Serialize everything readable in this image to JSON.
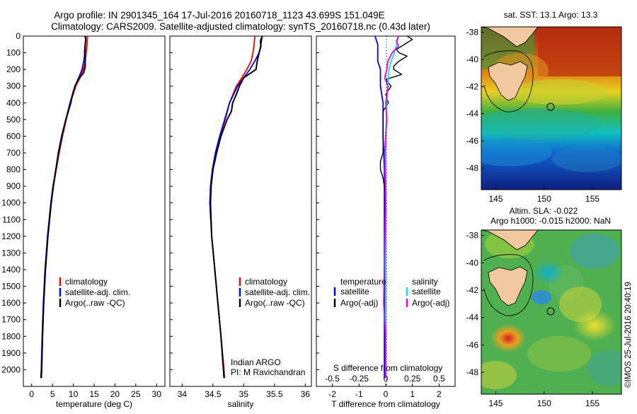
{
  "header": {
    "line1": "Argo profile: IN 2901345_164 17-Jul-2016 20160718_1123 43.699S 151.049E",
    "line2": "Climatology: CARS2009. Satellite-adjusted climatology: synTS_20160718.nc (0.43d later)"
  },
  "colors": {
    "climatology": "#ff0000",
    "satellite": "#0000ff",
    "argo": "#000000",
    "sal_satellite": "#00e5ee",
    "sal_argo": "#ee00ee"
  },
  "chart_data": [
    {
      "id": "temperature",
      "type": "line",
      "xlabel": "temperature (deg C)",
      "xlim": [
        -2,
        32
      ],
      "xticks": [
        0,
        5,
        10,
        15,
        20,
        25,
        30
      ],
      "ylim": [
        0,
        2100
      ],
      "yticks": [
        0,
        100,
        200,
        300,
        400,
        500,
        600,
        700,
        800,
        900,
        1000,
        1100,
        1200,
        1300,
        1400,
        1500,
        1600,
        1700,
        1800,
        1900,
        2000
      ],
      "legend": [
        "climatology",
        "satellite-adj. clim.",
        "Argo(..raw -QC)"
      ],
      "series": [
        {
          "name": "climatology",
          "depth": [
            0,
            50,
            100,
            150,
            200,
            250,
            300,
            400,
            500,
            600,
            700,
            800,
            900,
            1000,
            1200,
            1400,
            1600,
            1800,
            2000,
            2050
          ],
          "values": [
            13.4,
            13.3,
            13.1,
            12.9,
            12.4,
            11.6,
            10.6,
            9.3,
            8.3,
            7.4,
            6.6,
            5.9,
            5.2,
            4.7,
            3.9,
            3.3,
            2.9,
            2.6,
            2.4,
            2.3
          ]
        },
        {
          "name": "satellite",
          "depth": [
            0,
            50,
            100,
            150,
            200,
            250,
            300,
            400,
            500,
            600,
            700,
            800,
            900,
            1000,
            1200,
            1400,
            1600,
            1800,
            2000,
            2050
          ],
          "values": [
            13.0,
            12.9,
            12.8,
            12.5,
            12.1,
            11.3,
            10.4,
            9.2,
            8.2,
            7.3,
            6.5,
            5.8,
            5.1,
            4.6,
            3.8,
            3.2,
            2.8,
            2.5,
            2.3,
            2.2
          ]
        },
        {
          "name": "argo",
          "depth": [
            0,
            20,
            60,
            100,
            140,
            180,
            220,
            260,
            300,
            350,
            400,
            500,
            600,
            700,
            800,
            900,
            1000,
            1200,
            1400,
            1600,
            1800,
            2000,
            2050
          ],
          "values": [
            12.8,
            13.0,
            12.8,
            12.7,
            12.8,
            12.9,
            12.5,
            11.2,
            10.4,
            9.8,
            9.4,
            8.2,
            7.2,
            6.4,
            5.8,
            5.2,
            4.7,
            3.9,
            3.3,
            2.9,
            2.6,
            2.4,
            2.3
          ]
        }
      ]
    },
    {
      "id": "salinity",
      "type": "line",
      "xlabel": "salinity",
      "xlim": [
        33.8,
        36.1
      ],
      "xticks": [
        34,
        34.5,
        35,
        35.5,
        36
      ],
      "ylim": [
        0,
        2100
      ],
      "legend": [
        "climatology",
        "satellite-adj. clim.",
        "Argo(..raw -QC)"
      ],
      "annotation": [
        "Indian ARGO",
        "PI: M Ravichandran"
      ],
      "series": [
        {
          "name": "climatology",
          "depth": [
            0,
            50,
            100,
            150,
            200,
            250,
            300,
            400,
            500,
            600,
            700,
            800,
            900,
            1000,
            1200,
            1400,
            1600,
            1800,
            2000,
            2050
          ],
          "values": [
            35.18,
            35.17,
            35.15,
            35.12,
            35.05,
            34.97,
            34.88,
            34.77,
            34.7,
            34.62,
            34.55,
            34.5,
            34.47,
            34.45,
            34.48,
            34.53,
            34.58,
            34.63,
            34.68,
            34.69
          ]
        },
        {
          "name": "satellite",
          "depth": [
            0,
            50,
            100,
            150,
            200,
            250,
            300,
            400,
            500,
            600,
            700,
            800,
            900,
            1000,
            1200,
            1400,
            1600,
            1800,
            2000,
            2050
          ],
          "values": [
            35.3,
            35.28,
            35.25,
            35.18,
            35.1,
            35.0,
            34.9,
            34.77,
            34.69,
            34.61,
            34.54,
            34.49,
            34.46,
            34.45,
            34.48,
            34.53,
            34.58,
            34.63,
            34.67,
            34.68
          ]
        },
        {
          "name": "argo",
          "depth": [
            0,
            30,
            60,
            100,
            150,
            200,
            250,
            300,
            350,
            400,
            450,
            500,
            600,
            700,
            800,
            900,
            1000,
            1200,
            1400,
            1600,
            1800,
            2000,
            2050
          ],
          "values": [
            35.3,
            35.27,
            35.28,
            35.25,
            35.22,
            35.2,
            35.0,
            34.93,
            34.88,
            34.82,
            34.8,
            34.73,
            34.63,
            34.56,
            34.5,
            34.47,
            34.46,
            34.48,
            34.53,
            34.58,
            34.63,
            34.67,
            34.68
          ]
        }
      ]
    },
    {
      "id": "difference",
      "type": "line",
      "xlabel": "T difference from climatology",
      "x2label": "S difference from climatology",
      "xlim": [
        -2.6,
        2.6
      ],
      "xticks": [
        -2,
        -1,
        0,
        1,
        2
      ],
      "x2ticks": [
        "-0.5",
        "-0.25",
        "0",
        "0.25",
        "0.5"
      ],
      "ylim": [
        0,
        2100
      ],
      "legend": {
        "temperature": "temperature",
        "salinity": "salinity",
        "satellite": "satellite",
        "argo": "Argo(-adj)"
      },
      "series": [
        {
          "name": "T satellite",
          "depth": [
            0,
            50,
            100,
            150,
            200,
            300,
            400,
            500,
            600,
            800,
            1000,
            1200,
            1500,
            1800,
            2050
          ],
          "values": [
            -0.4,
            -0.3,
            -0.3,
            -0.3,
            -0.2,
            -0.2,
            -0.1,
            -0.1,
            -0.1,
            -0.05,
            -0.05,
            -0.05,
            -0.05,
            -0.05,
            -0.05
          ]
        },
        {
          "name": "T argo",
          "depth": [
            0,
            20,
            40,
            60,
            80,
            100,
            120,
            150,
            180,
            200,
            230,
            260,
            300,
            350,
            400,
            450,
            500,
            600,
            700,
            750,
            800,
            850,
            900,
            1000,
            1100,
            1200,
            1300,
            1500,
            1800,
            2050
          ],
          "values": [
            0.8,
            1.0,
            0.8,
            0.6,
            0.4,
            0.5,
            0.8,
            0.5,
            0.3,
            0.3,
            0.6,
            0.0,
            0.2,
            0.0,
            0.1,
            -0.1,
            -0.1,
            -0.1,
            -0.1,
            -0.2,
            -0.2,
            -0.1,
            -0.05,
            0.0,
            0.0,
            0.0,
            0.0,
            0.0,
            0.0,
            0.0
          ]
        },
        {
          "name": "S satellite",
          "depth": [
            0,
            50,
            100,
            150,
            200,
            300,
            400,
            600,
            800,
            1000,
            1200,
            1500,
            1800,
            2050
          ],
          "values": [
            0.12,
            0.1,
            0.08,
            0.05,
            0.03,
            0.02,
            0.01,
            0.0,
            0.0,
            0.0,
            0.0,
            0.0,
            0.0,
            0.0
          ]
        },
        {
          "name": "S argo",
          "depth": [
            0,
            30,
            60,
            100,
            150,
            200,
            250,
            300,
            400,
            500,
            700,
            1000,
            1300,
            1600,
            1800,
            2050
          ],
          "values": [
            0.12,
            0.1,
            0.12,
            0.06,
            0.02,
            0.01,
            -0.01,
            0.02,
            0.0,
            0.01,
            -0.01,
            0.0,
            -0.01,
            -0.02,
            0.0,
            0.0
          ]
        }
      ]
    }
  ],
  "maps": {
    "sst": {
      "title": "sat. SST: 13.1 Argo: 13.3",
      "yticks": [
        "-38",
        "-40",
        "-42",
        "-44",
        "-46",
        "-48"
      ],
      "xticks": [
        "145",
        "150",
        "155"
      ]
    },
    "sla": {
      "title1": "Altim. SLA: -0.022",
      "title2": "Argo h1000: -0.015 h2000: NaN",
      "yticks": [
        "-38",
        "-40",
        "-42",
        "-44",
        "-46",
        "-48"
      ],
      "xticks": [
        "145",
        "150",
        "155"
      ]
    }
  },
  "credit": "©IMOS 25-Jul-2016 20:40:19"
}
